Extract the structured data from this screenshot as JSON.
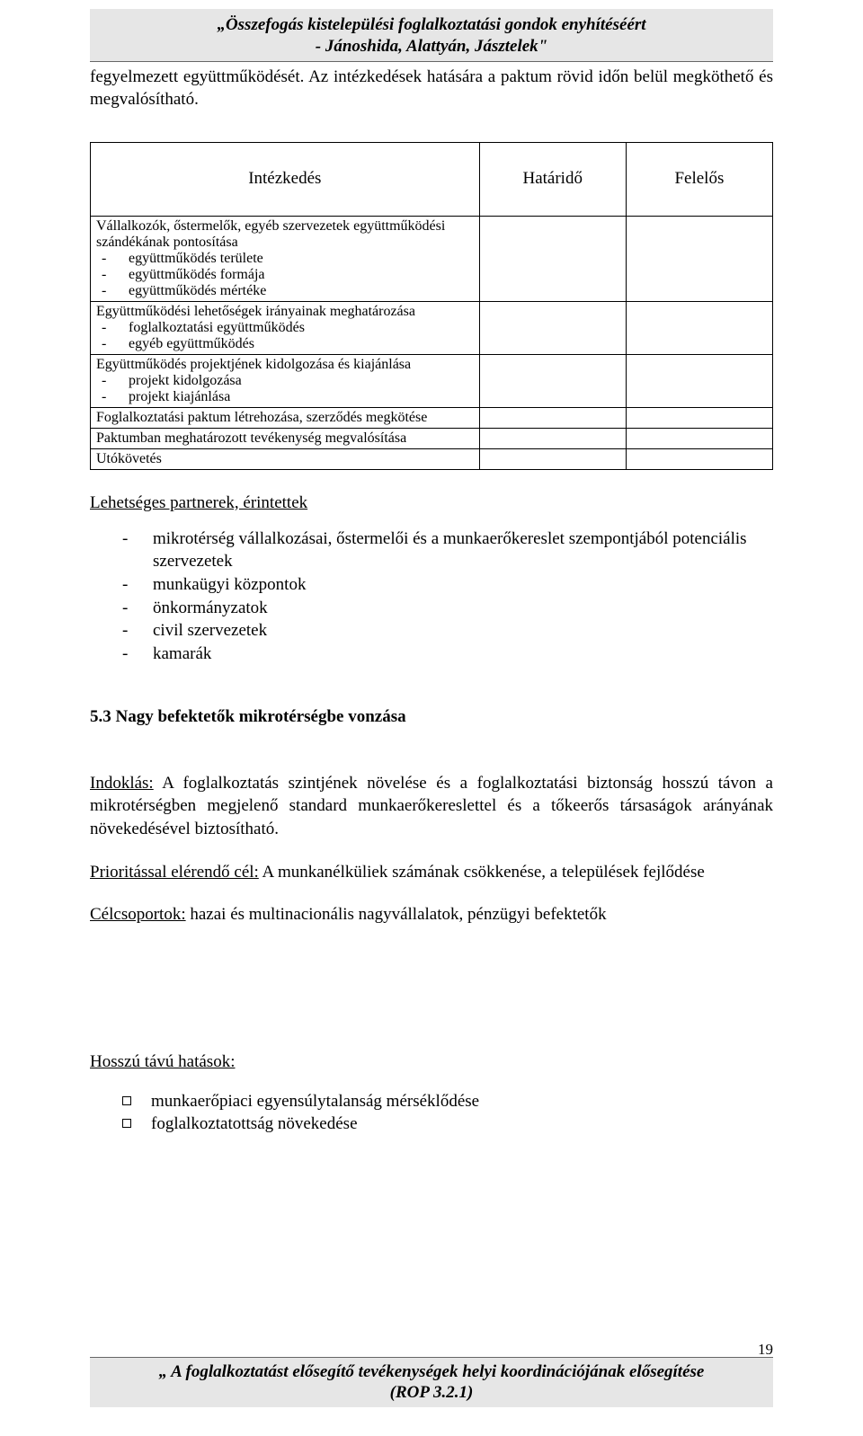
{
  "header": {
    "line1": "„Összefogás kistelepülési foglalkoztatási gondok enyhítéséért",
    "line2": "- Jánoshida, Alattyán, Jásztelek\""
  },
  "intro": "fegyelmezett együttműködését. Az intézkedések hatására a paktum rövid időn belül megköthető és megvalósítható.",
  "table": {
    "columns": [
      "Intézkedés",
      "Határidő",
      "Felelős"
    ],
    "column_widths_pct": [
      57,
      21.5,
      21.5
    ],
    "border_color": "#000000",
    "header_fontsize": 19,
    "body_fontsize": 16,
    "rows": [
      {
        "title": "Vállalkozók, őstermelők, egyéb szervezetek együttműködési szándékának pontosítása",
        "items": [
          "együttműködés területe",
          "együttműködés formája",
          "együttműködés mértéke"
        ],
        "c2": "",
        "c3": ""
      },
      {
        "title": "Együttműködési lehetőségek irányainak meghatározása",
        "items": [
          "foglalkoztatási együttműködés",
          "egyéb együttműködés"
        ],
        "c2": "",
        "c3": ""
      },
      {
        "title": "Együttműködés projektjének kidolgozása és kiajánlása",
        "items": [
          "projekt kidolgozása",
          "projekt kiajánlása"
        ],
        "c2": "",
        "c3": ""
      },
      {
        "title": "Foglalkoztatási paktum létrehozása, szerződés megkötése",
        "items": [],
        "c2": "",
        "c3": ""
      },
      {
        "title": "Paktumban meghatározott tevékenység megvalósítása",
        "items": [],
        "c2": "",
        "c3": ""
      },
      {
        "title": "Utókövetés",
        "items": [],
        "c2": "",
        "c3": ""
      }
    ]
  },
  "partners": {
    "heading": "Lehetséges partnerek, érintettek",
    "items": [
      "mikrotérség vállalkozásai, őstermelői  és a munkaerőkereslet szempontjából potenciális szervezetek",
      "munkaügyi központok",
      "önkormányzatok",
      "civil szervezetek",
      "kamarák"
    ]
  },
  "section53": {
    "heading": "5.3 Nagy befektetők mikrotérségbe vonzása",
    "reason_label": "Indoklás:",
    "reason_text": " A foglalkoztatás szintjének növelése és a foglalkoztatási biztonság hosszú távon a mikrotérségben megjelenő standard munkaerőkereslettel és a tőkeerős társaságok arányának növekedésével biztosítható.",
    "objective_label": "Prioritással elérendő cél:",
    "objective_text": " A munkanélküliek számának csökkenése, a települések fejlődése",
    "targets_label": "Célcsoportok:",
    "targets_text": "  hazai és multinacionális nagyvállalatok, pénzügyi befektetők"
  },
  "longterm": {
    "heading": "Hosszú távú hatások:",
    "items": [
      "munkaerőpiaci egyensúlytalanság mérséklődése",
      "foglalkoztatottság növekedése"
    ]
  },
  "footer": {
    "line1": "„ A foglalkoztatást elősegítő tevékenységek helyi koordinációjának elősegítése",
    "line2": "(ROP 3.2.1)"
  },
  "page_number": "19",
  "colors": {
    "band_bg": "#e6e6e6",
    "band_border": "#666666",
    "text": "#000000",
    "page_bg": "#ffffff"
  }
}
